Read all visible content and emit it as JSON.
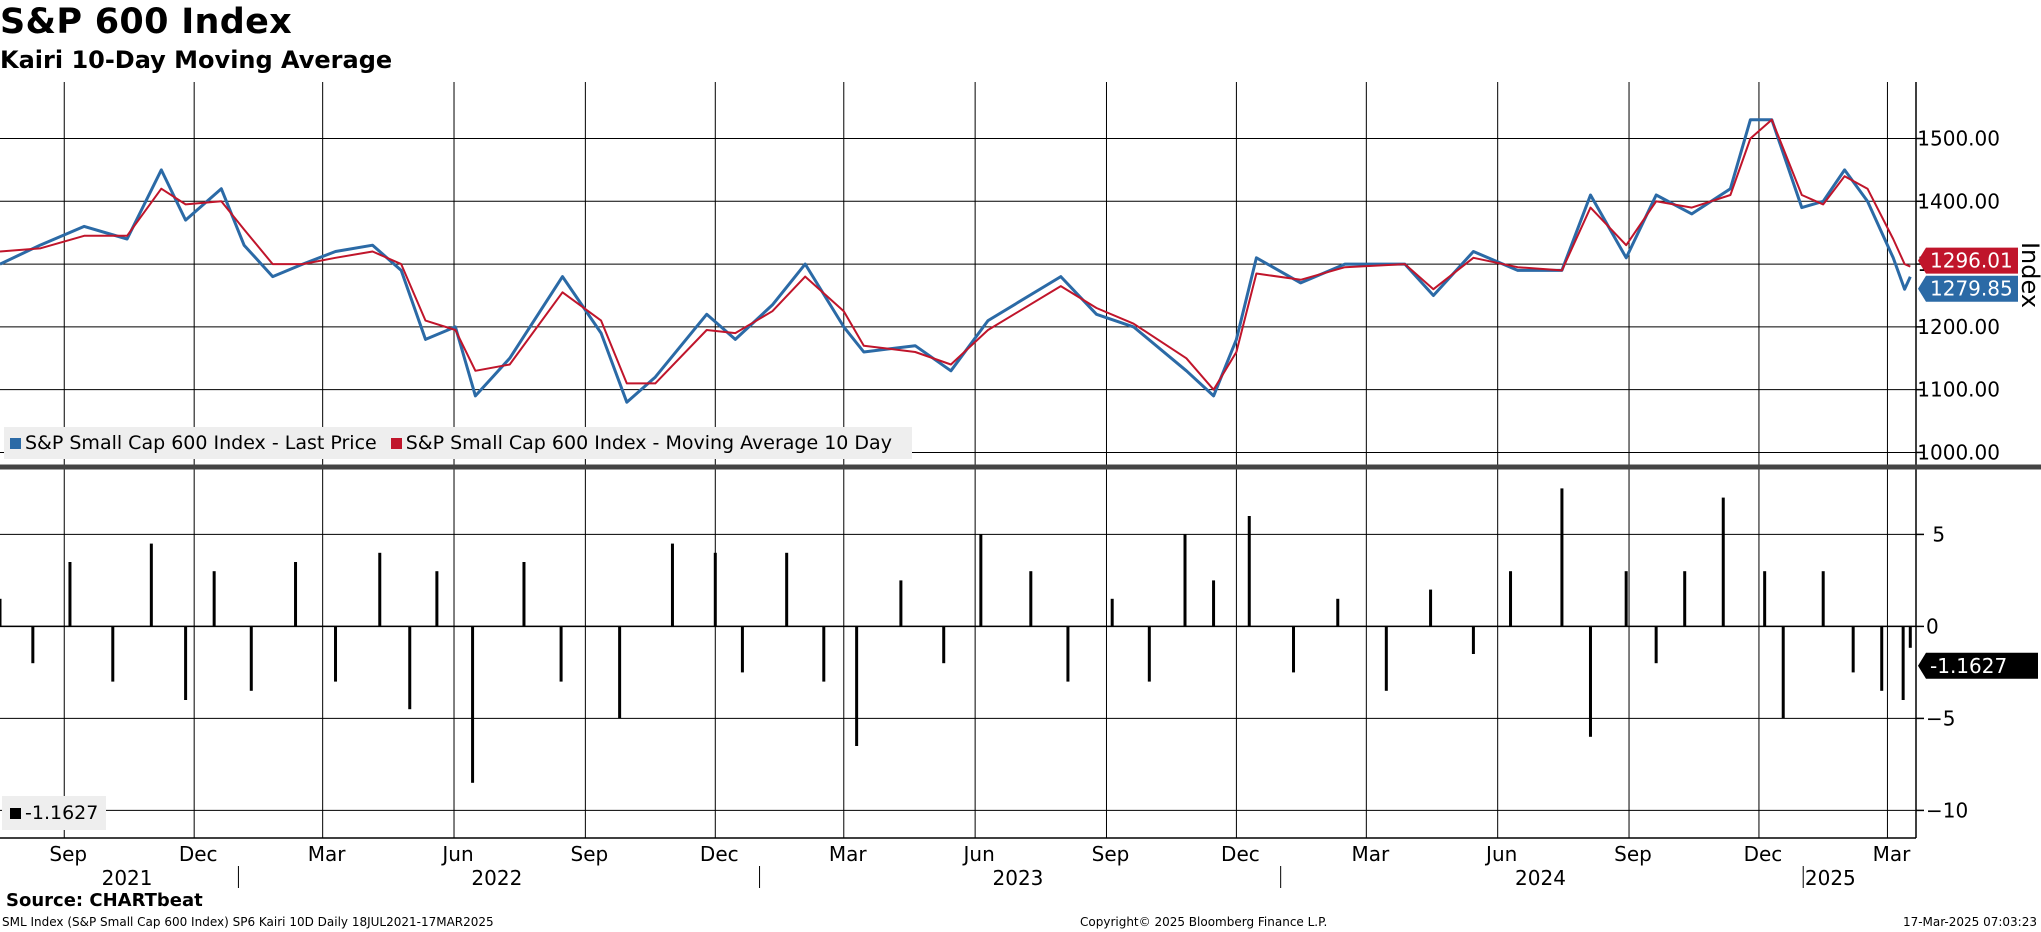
{
  "title": "S&P 600 Index",
  "subtitle": "Kairi 10-Day Moving Average",
  "legend_top": [
    {
      "label": "S&P Small Cap 600 Index - Last Price",
      "color": "#2b6aa6"
    },
    {
      "label": "S&P Small Cap 600 Index - Moving Average 10 Day",
      "color": "#c0152b"
    }
  ],
  "legend_bottom": {
    "label": "-1.1627",
    "color": "#000000"
  },
  "footer": {
    "source": "Source: CHARTbeat",
    "left": "SML Index (S&P Small Cap 600 Index) SP6 Kairi 10D  Daily 18JUL2021-17MAR2025",
    "middle": "Copyright© 2025 Bloomberg Finance L.P.",
    "right": "17-Mar-2025 07:03:23"
  },
  "chart_data": [
    {
      "type": "line",
      "ylabel": "Index",
      "ylim": [
        980,
        1590
      ],
      "yticks": [
        "1000.00",
        "1100.00",
        "1200.00",
        "1300.00",
        "1400.00",
        "1500.00"
      ],
      "grid": true,
      "legend_position": "bottom-left",
      "last_value_label": "1279.85",
      "moving_average_label": "1296.01",
      "x_tick_labels": [
        "Sep",
        "Dec",
        "Mar",
        "Jun",
        "Sep",
        "Dec",
        "Mar",
        "Jun",
        "Sep",
        "Dec",
        "Mar",
        "Jun",
        "Sep",
        "Dec",
        "Mar"
      ],
      "year_labels": [
        "2021",
        "2022",
        "2023",
        "2024",
        "2025"
      ],
      "x": [
        "2021-07-18",
        "2021-08-15",
        "2021-09-15",
        "2021-10-15",
        "2021-11-08",
        "2021-11-25",
        "2021-12-20",
        "2022-01-05",
        "2022-01-25",
        "2022-02-15",
        "2022-03-10",
        "2022-04-05",
        "2022-04-25",
        "2022-05-12",
        "2022-06-02",
        "2022-06-16",
        "2022-07-10",
        "2022-08-16",
        "2022-09-12",
        "2022-09-30",
        "2022-10-20",
        "2022-11-25",
        "2022-12-15",
        "2023-01-10",
        "2023-02-02",
        "2023-03-01",
        "2023-03-15",
        "2023-04-20",
        "2023-05-15",
        "2023-06-10",
        "2023-07-31",
        "2023-08-25",
        "2023-09-20",
        "2023-10-27",
        "2023-11-15",
        "2023-12-01",
        "2023-12-15",
        "2024-01-15",
        "2024-02-15",
        "2024-03-28",
        "2024-04-17",
        "2024-05-15",
        "2024-06-15",
        "2024-07-16",
        "2024-08-05",
        "2024-08-30",
        "2024-09-20",
        "2024-10-15",
        "2024-11-11",
        "2024-11-25",
        "2024-12-10",
        "2024-12-31",
        "2025-01-15",
        "2025-01-30",
        "2025-02-15",
        "2025-03-05",
        "2025-03-13",
        "2025-03-17"
      ],
      "series": [
        {
          "name": "S&P Small Cap 600 Index - Last Price",
          "color": "#2b6aa6",
          "values": [
            1300,
            1330,
            1360,
            1340,
            1450,
            1370,
            1420,
            1330,
            1280,
            1300,
            1320,
            1330,
            1290,
            1180,
            1200,
            1090,
            1150,
            1280,
            1190,
            1080,
            1120,
            1220,
            1180,
            1235,
            1300,
            1200,
            1160,
            1170,
            1130,
            1210,
            1280,
            1220,
            1200,
            1130,
            1090,
            1180,
            1310,
            1270,
            1300,
            1300,
            1250,
            1320,
            1290,
            1290,
            1410,
            1310,
            1410,
            1380,
            1420,
            1530,
            1530,
            1390,
            1400,
            1450,
            1400,
            1310,
            1260,
            1279.85
          ]
        },
        {
          "name": "S&P Small Cap 600 Index - Moving Average 10 Day",
          "color": "#c0152b",
          "values": [
            1320,
            1325,
            1345,
            1345,
            1420,
            1395,
            1400,
            1355,
            1300,
            1300,
            1310,
            1320,
            1300,
            1210,
            1195,
            1130,
            1140,
            1255,
            1210,
            1110,
            1110,
            1195,
            1190,
            1225,
            1280,
            1225,
            1170,
            1160,
            1140,
            1195,
            1265,
            1230,
            1205,
            1150,
            1100,
            1160,
            1285,
            1275,
            1295,
            1300,
            1260,
            1310,
            1295,
            1290,
            1390,
            1330,
            1400,
            1390,
            1410,
            1500,
            1530,
            1410,
            1395,
            1440,
            1420,
            1340,
            1300,
            1296.01
          ]
        }
      ]
    },
    {
      "type": "bar",
      "title": "Kairi 10-Day Moving Average",
      "ylim": [
        -11.5,
        8.5
      ],
      "yticks": [
        5,
        0,
        -5,
        -10
      ],
      "grid": true,
      "last_value_label": "-1.1627",
      "x": [
        "2021-07-18",
        "2021-08-10",
        "2021-09-05",
        "2021-10-05",
        "2021-11-01",
        "2021-11-25",
        "2021-12-15",
        "2022-01-10",
        "2022-02-10",
        "2022-03-10",
        "2022-04-10",
        "2022-05-01",
        "2022-05-20",
        "2022-06-14",
        "2022-07-20",
        "2022-08-15",
        "2022-09-25",
        "2022-11-01",
        "2022-12-01",
        "2022-12-20",
        "2023-01-20",
        "2023-02-15",
        "2023-03-10",
        "2023-04-10",
        "2023-05-10",
        "2023-06-05",
        "2023-07-10",
        "2023-08-05",
        "2023-09-05",
        "2023-10-01",
        "2023-10-26",
        "2023-11-15",
        "2023-12-10",
        "2024-01-10",
        "2024-02-10",
        "2024-03-15",
        "2024-04-15",
        "2024-05-15",
        "2024-06-10",
        "2024-07-16",
        "2024-08-05",
        "2024-08-30",
        "2024-09-20",
        "2024-10-10",
        "2024-11-06",
        "2024-12-05",
        "2024-12-18",
        "2025-01-15",
        "2025-02-05",
        "2025-02-25",
        "2025-03-12",
        "2025-03-17"
      ],
      "values": [
        1.5,
        -2.0,
        3.5,
        -3.0,
        4.5,
        -4.0,
        3.0,
        -3.5,
        3.5,
        -3.0,
        4.0,
        -4.5,
        3.0,
        -8.5,
        3.5,
        -3.0,
        -5.0,
        4.5,
        4.0,
        -2.5,
        4.0,
        -3.0,
        -6.5,
        2.5,
        -2.0,
        5.0,
        3.0,
        -3.0,
        1.5,
        -3.0,
        5.0,
        2.5,
        6.0,
        -2.5,
        1.5,
        -3.5,
        2.0,
        -1.5,
        3.0,
        7.5,
        -6.0,
        3.0,
        -2.0,
        3.0,
        7.0,
        3.0,
        -5.0,
        3.0,
        -2.5,
        -3.5,
        -4.0,
        -1.1627
      ]
    }
  ]
}
